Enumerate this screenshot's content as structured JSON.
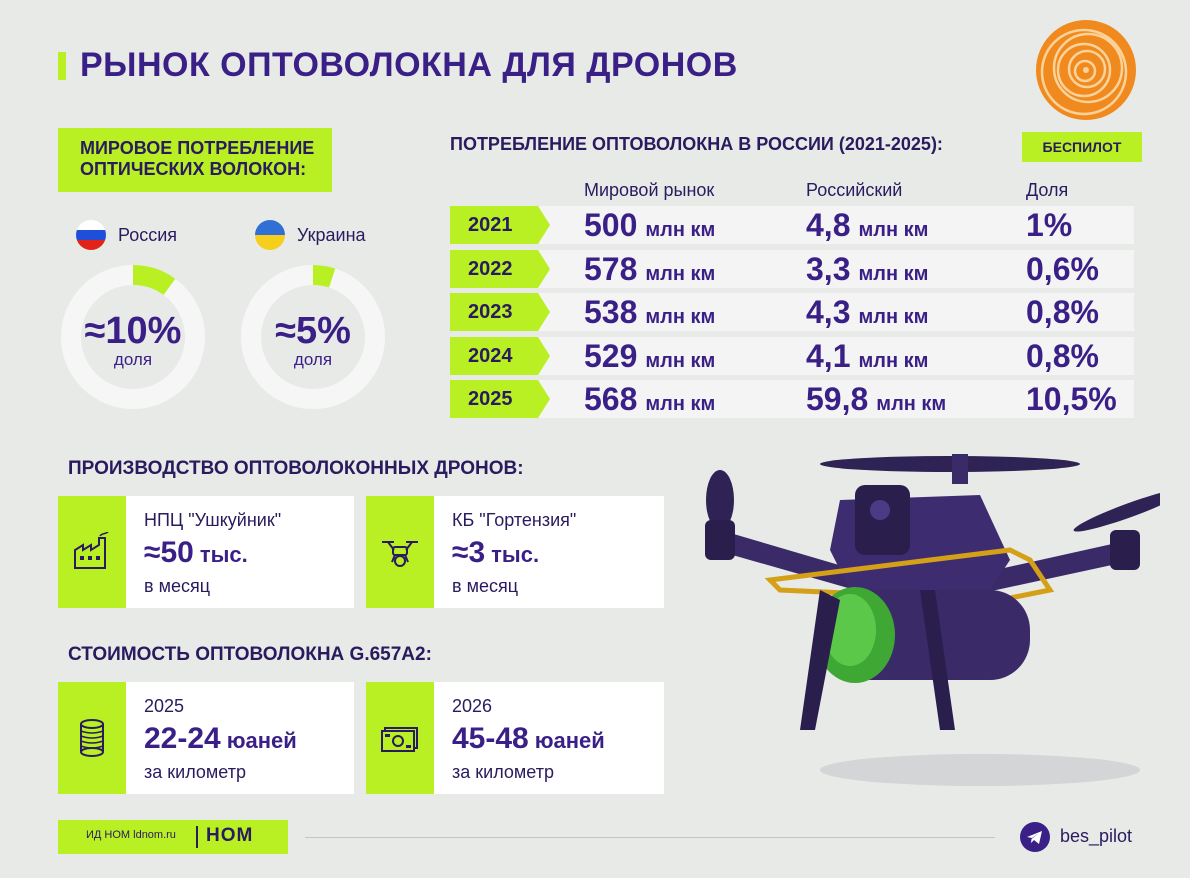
{
  "title": "РЫНОК ОПТОВОЛОКНА ДЛЯ ДРОНОВ",
  "world": {
    "header_line1": "МИРОВОЕ ПОТРЕБЛЕНИЕ",
    "header_line2": "ОПТИЧЕСКИХ ВОЛОКОН:",
    "countries": [
      {
        "name": "Россия",
        "value": "≈10%",
        "sub": "доля",
        "share": 0.1
      },
      {
        "name": "Украина",
        "value": "≈5%",
        "sub": "доля",
        "share": 0.05
      }
    ]
  },
  "russia_table": {
    "title": "ПОТРЕБЛЕНИЕ ОПТОВОЛОКНА В РОССИИ (2021-2025):",
    "badge": "БЕСПИЛОТ",
    "headers": [
      "Мировой рынок",
      "Российский",
      "Доля"
    ],
    "unit": "млн км",
    "rows": [
      {
        "year": "2021",
        "world": "500",
        "russia": "4,8",
        "share": "1%"
      },
      {
        "year": "2022",
        "world": "578",
        "russia": "3,3",
        "share": "0,6%"
      },
      {
        "year": "2023",
        "world": "538",
        "russia": "4,3",
        "share": "0,8%"
      },
      {
        "year": "2024",
        "world": "529",
        "russia": "4,1",
        "share": "0,8%"
      },
      {
        "year": "2025",
        "world": "568",
        "russia": "59,8",
        "share": "10,5%"
      }
    ]
  },
  "production": {
    "title": "ПРОИЗВОДСТВО ОПТОВОЛОКОННЫХ ДРОНОВ:",
    "cards": [
      {
        "name": "НПЦ \"Ушкуйник\"",
        "value": "≈50",
        "unit": "тыс.",
        "period": "в месяц",
        "icon": "factory-icon"
      },
      {
        "name": "КБ \"Гортензия\"",
        "value": "≈3",
        "unit": "тыс.",
        "period": "в месяц",
        "icon": "drone-icon"
      }
    ]
  },
  "cost": {
    "title": "СТОИМОСТЬ ОПТОВОЛОКНА G.657A2:",
    "cards": [
      {
        "year": "2025",
        "value": "22-24",
        "unit": "юаней",
        "period": "за километр",
        "icon": "cable-spool-icon"
      },
      {
        "year": "2026",
        "value": "45-48",
        "unit": "юаней",
        "period": "за километр",
        "icon": "banknote-icon"
      }
    ]
  },
  "footer": {
    "source": "ИД НОМ ldnom.ru",
    "brand": "НОМ",
    "handle": "bes_pilot"
  },
  "colors": {
    "accent": "#b8f023",
    "primary": "#3a1f86",
    "text": "#2a1a5e"
  }
}
